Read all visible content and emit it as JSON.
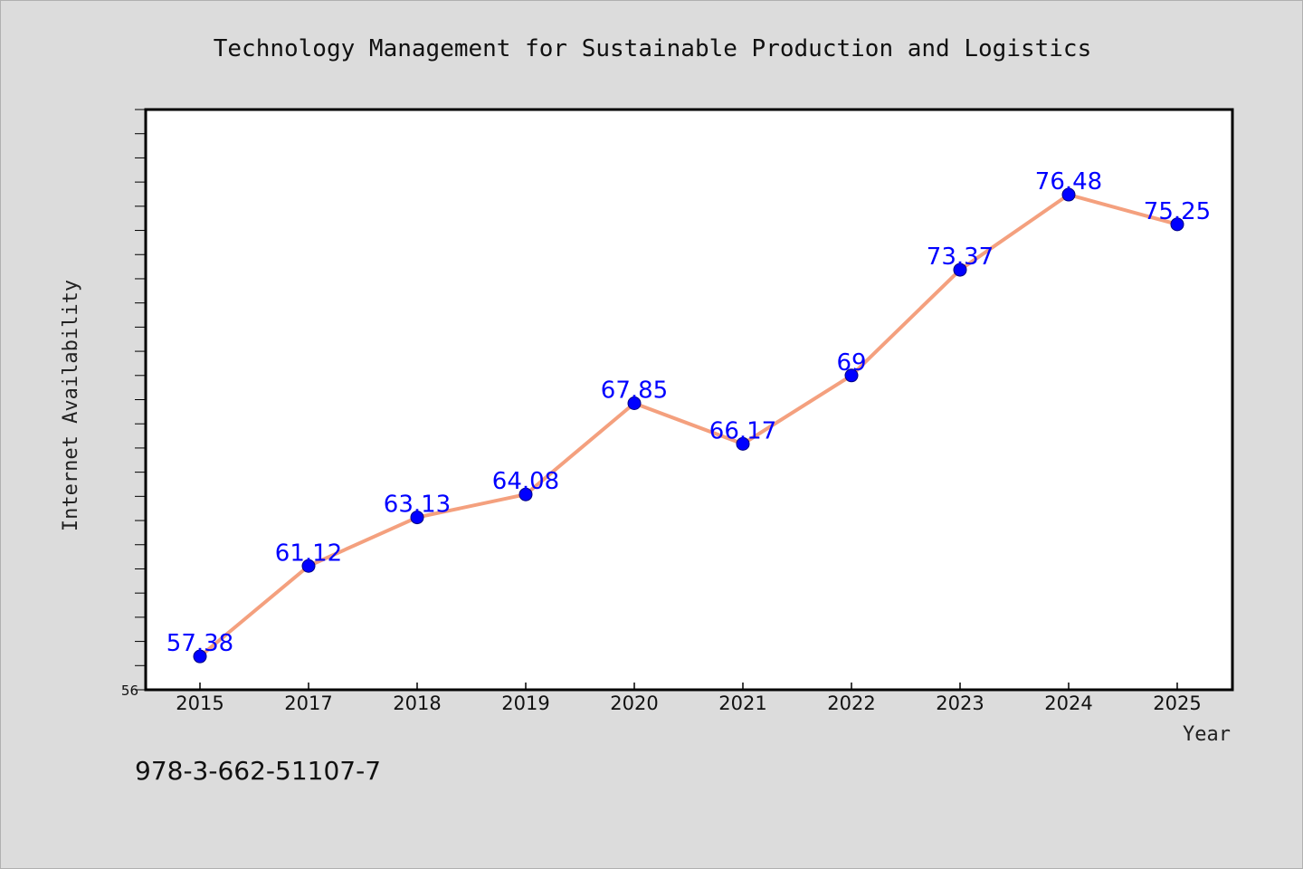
{
  "footer": {
    "isbn": "978-3-662-51107-7"
  },
  "chart_data": {
    "type": "line",
    "title": "Technology Management for Sustainable Production and Logistics",
    "xlabel": "Year",
    "ylabel": "Internet Availability",
    "categories": [
      "2015",
      "2017",
      "2018",
      "2019",
      "2020",
      "2021",
      "2022",
      "2023",
      "2024",
      "2025"
    ],
    "series": [
      {
        "values": [
          57.38,
          61.12,
          63.13,
          64.08,
          67.85,
          66.17,
          69,
          73.37,
          76.48,
          75.25
        ],
        "line_color": "#f4a07e",
        "marker_color": "#0000ff"
      }
    ],
    "data_labels": [
      "57.38",
      "61.12",
      "63.13",
      "64.08",
      "67.85",
      "66.17",
      "69",
      "73.37",
      "76.48",
      "75.25"
    ],
    "ylim": [
      56,
      80
    ],
    "y_min_label": "56",
    "y_minor_tick_step": 1,
    "grid": false,
    "legend": "none",
    "colors": {
      "background": "#dcdcdc",
      "plot_background": "#ffffff",
      "line": "#f4a07e",
      "marker": "#0000ff",
      "data_label": "#0000ff"
    }
  }
}
